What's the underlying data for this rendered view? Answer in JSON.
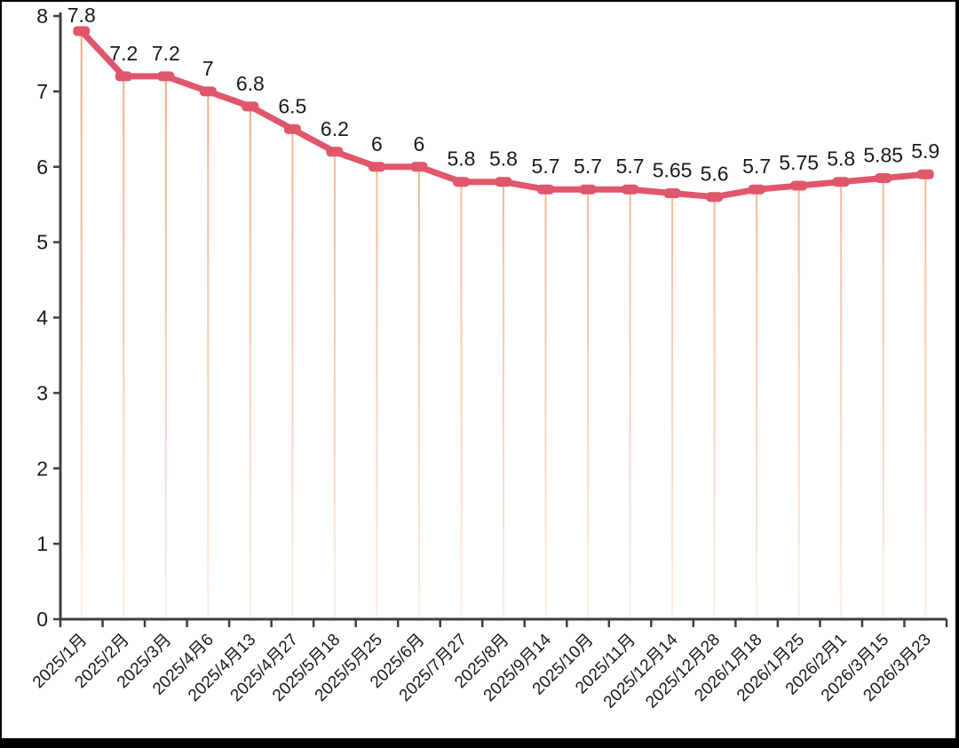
{
  "chart_data": {
    "type": "line",
    "title": "",
    "xlabel": "",
    "ylabel": "",
    "categories": [
      "2025/1月",
      "2025/2月",
      "2025/3月",
      "2025/4月6",
      "2025/4月13",
      "2025/4月27",
      "2025/5月18",
      "2025/5月25",
      "2025/6月",
      "2025/7月27",
      "2025/8月",
      "2025/9月14",
      "2025/10月",
      "2025/11月",
      "2025/12月14",
      "2025/12月28",
      "2026/1月18",
      "2026/1月25",
      "2026/2月1",
      "2026/3月15",
      "2026/3月23"
    ],
    "series": [
      {
        "name": "",
        "values": [
          7.8,
          7.2,
          7.2,
          7,
          6.8,
          6.5,
          6.2,
          6,
          6,
          5.8,
          5.8,
          5.7,
          5.7,
          5.7,
          5.65,
          5.6,
          5.7,
          5.75,
          5.8,
          5.85,
          5.9
        ],
        "point_labels": [
          "7.8",
          "7.2",
          "7.2",
          "7",
          "6.8",
          "6.5",
          "6.2",
          "6",
          "6",
          "5.8",
          "5.8",
          "5.7",
          "5.7",
          "5.7",
          "5.65",
          "5.6",
          "5.7",
          "5.75",
          "5.8",
          "5.85",
          "5.9"
        ]
      }
    ],
    "ylim": [
      0,
      8
    ],
    "yticks": [
      0,
      1,
      2,
      3,
      4,
      5,
      6,
      7,
      8
    ],
    "grid": false,
    "legend": "none",
    "drop_lines": true,
    "marker": "rounded-square",
    "colors": {
      "line": "#e0566b",
      "marker": "#e0566b",
      "drop_line_top": "#f2a87e",
      "drop_line_bottom": "#fdeee5",
      "axis": "#3f3f3f",
      "tick_label": "#1a1a1a",
      "data_label": "#1a1a1a",
      "background": "#ffffff",
      "frame": "#000000"
    }
  }
}
